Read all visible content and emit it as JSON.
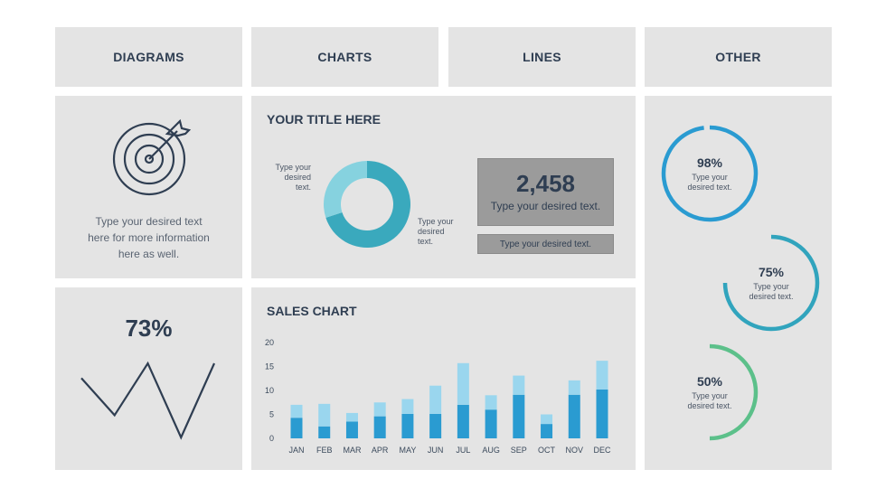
{
  "tabs": [
    "DIAGRAMS",
    "CHARTS",
    "LINES",
    "OTHER"
  ],
  "diagram_panel": {
    "text": [
      "Type your desired text",
      "here for more information",
      "here as well."
    ]
  },
  "donut_panel": {
    "title": "YOUR TITLE HERE",
    "label_left": [
      "Type your",
      "desired",
      "text."
    ],
    "label_right": [
      "Type your",
      "desired",
      "text."
    ],
    "stat_value": "2,458",
    "stat_text": "Type your desired text.",
    "bar_text": "Type your desired text."
  },
  "lines_panel": {
    "value": "73%",
    "line_points": [
      8,
      3,
      10,
      0,
      10
    ]
  },
  "sales_panel": {
    "title": "SALES CHART"
  },
  "rings": [
    {
      "value": "98%",
      "fraction": 0.98,
      "text": [
        "Type your",
        "desired text."
      ],
      "color": "#2a9bd1"
    },
    {
      "value": "75%",
      "fraction": 0.75,
      "text": [
        "Type your",
        "desired text."
      ],
      "color": "#31a4bd"
    },
    {
      "value": "50%",
      "fraction": 0.5,
      "text": [
        "Type your",
        "desired text."
      ],
      "color": "#5cc08a"
    }
  ],
  "colors": {
    "dark": "#2f3e52",
    "bar_dark": "#2a9bd1",
    "bar_light": "#9ad6ee",
    "donut_dark": "#3aa9bd",
    "donut_light": "#86d2df",
    "panel": "#e4e4e4"
  },
  "chart_data": [
    {
      "type": "pie",
      "title": "YOUR TITLE HERE",
      "values": [
        70,
        30
      ],
      "colors": [
        "#3aa9bd",
        "#86d2df"
      ]
    },
    {
      "type": "bar",
      "title": "SALES CHART",
      "categories": [
        "JAN",
        "FEB",
        "MAR",
        "APR",
        "MAY",
        "JUN",
        "JUL",
        "AUG",
        "SEP",
        "OCT",
        "NOV",
        "DEC"
      ],
      "series": [
        {
          "values": [
            4.3,
            2.5,
            3.5,
            4.6,
            5.1,
            5.1,
            7.0,
            6.0,
            9.1,
            3.0,
            9.1,
            10.2
          ]
        },
        {
          "values": [
            2.7,
            4.7,
            1.8,
            2.9,
            3.1,
            5.9,
            8.7,
            3.0,
            4.0,
            2.0,
            3.0,
            6.0
          ]
        }
      ],
      "stacked": true,
      "ylim": [
        0,
        20
      ],
      "yticks": [
        0,
        5,
        10,
        15,
        20
      ]
    }
  ]
}
